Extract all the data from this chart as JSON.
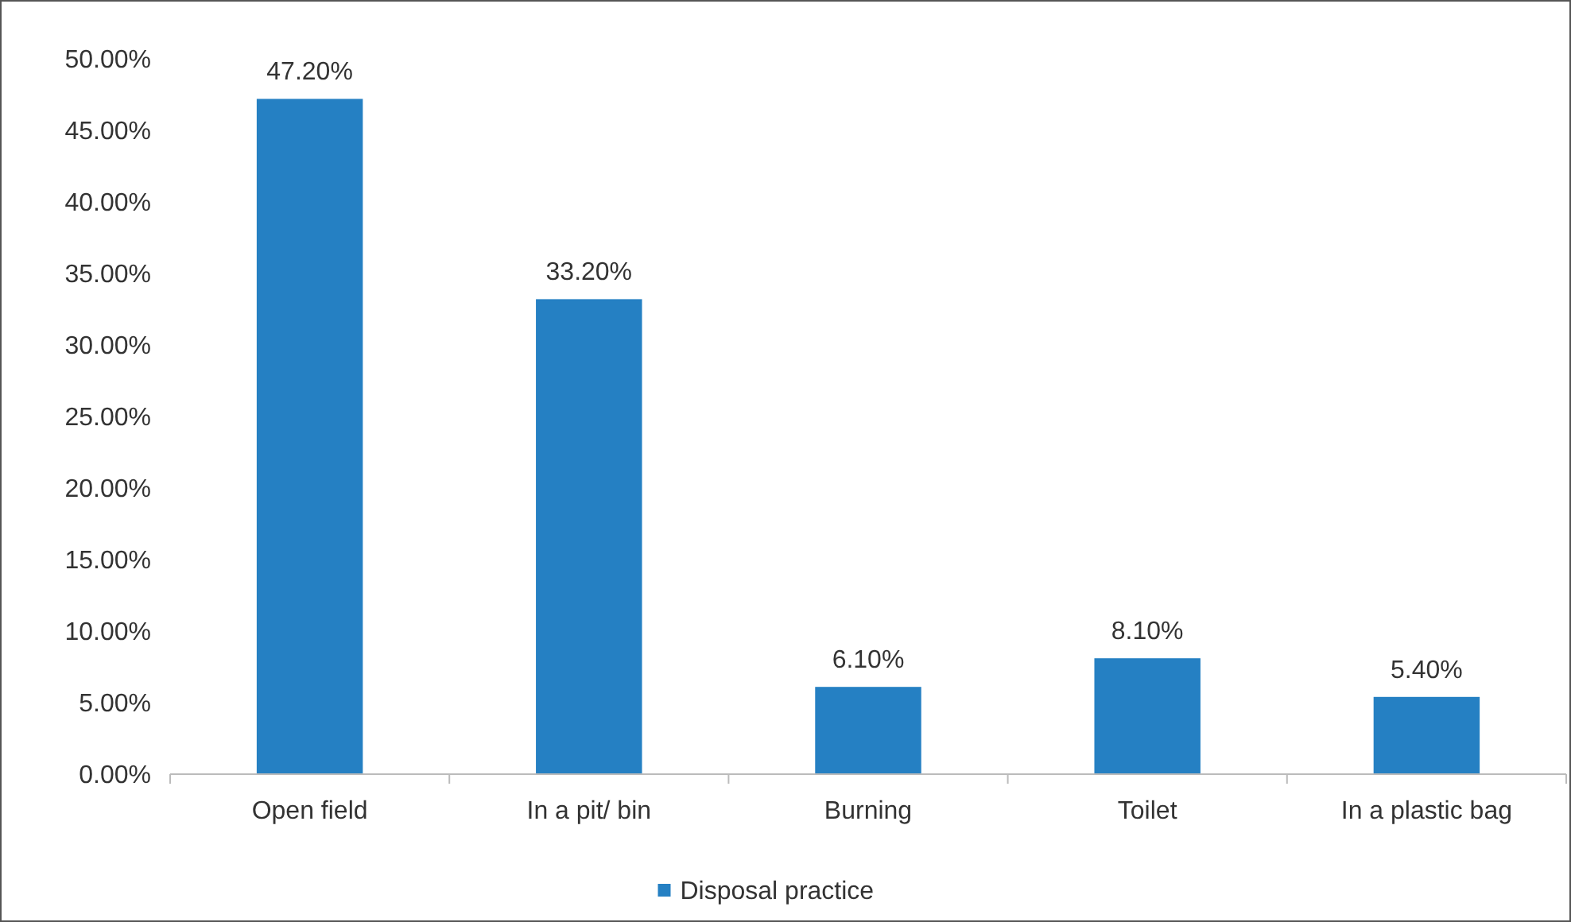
{
  "chart_data": {
    "type": "bar",
    "categories": [
      "Open field",
      "In a pit/ bin",
      "Burning",
      "Toilet",
      "In a plastic bag"
    ],
    "series": [
      {
        "name": "Disposal practice",
        "color": "#2580c3",
        "values": [
          47.2,
          33.2,
          6.1,
          8.1,
          5.4
        ],
        "value_labels": [
          "47.20%",
          "33.20%",
          "6.10%",
          "8.10%",
          "5.40%"
        ]
      }
    ],
    "ylim": [
      0,
      50
    ],
    "yticks": [
      {
        "value": 0,
        "label": "0.00%"
      },
      {
        "value": 5,
        "label": "5.00%"
      },
      {
        "value": 10,
        "label": "10.00%"
      },
      {
        "value": 15,
        "label": "15.00%"
      },
      {
        "value": 20,
        "label": "20.00%"
      },
      {
        "value": 25,
        "label": "25.00%"
      },
      {
        "value": 30,
        "label": "30.00%"
      },
      {
        "value": 35,
        "label": "35.00%"
      },
      {
        "value": 40,
        "label": "40.00%"
      },
      {
        "value": 45,
        "label": "45.00%"
      },
      {
        "value": 50,
        "label": "50.00%"
      }
    ],
    "legend": "bottom"
  }
}
